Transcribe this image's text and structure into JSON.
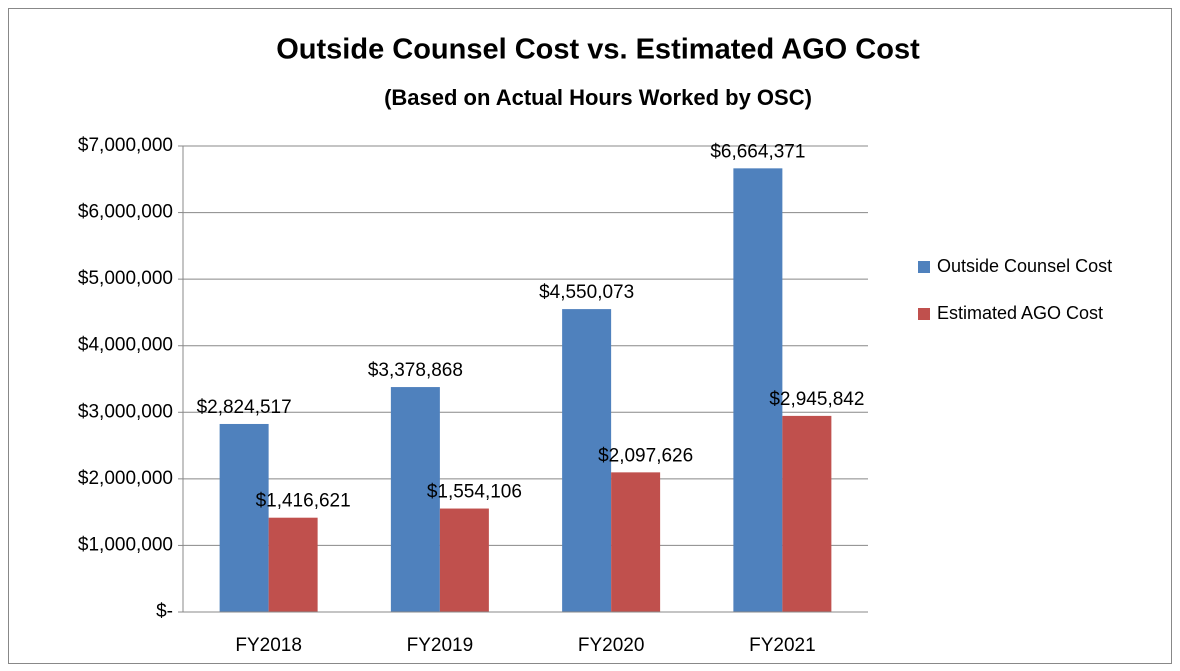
{
  "chart_data": {
    "type": "bar",
    "title": "Outside Counsel Cost vs. Estimated AGO Cost",
    "subtitle": "(Based on Actual Hours Worked by OSC)",
    "categories": [
      "FY2018",
      "FY2019",
      "FY2020",
      "FY2021"
    ],
    "series": [
      {
        "name": "Outside Counsel Cost",
        "color": "#4f81bd",
        "values": [
          2824517,
          3378868,
          4550073,
          6664371
        ],
        "value_labels": [
          "$2,824,517",
          "$3,378,868",
          "$4,550,073",
          "$6,664,371"
        ]
      },
      {
        "name": "Estimated AGO Cost",
        "color": "#c0504d",
        "values": [
          1416621,
          1554106,
          2097626,
          2945842
        ],
        "value_labels": [
          "$1,416,621",
          "$1,554,106",
          "$2,097,626",
          "$2,945,842"
        ]
      }
    ],
    "ylim": [
      0,
      7000000
    ],
    "yticks": [
      {
        "value": 0,
        "label": "$-"
      },
      {
        "value": 1000000,
        "label": "$1,000,000"
      },
      {
        "value": 2000000,
        "label": "$2,000,000"
      },
      {
        "value": 3000000,
        "label": "$3,000,000"
      },
      {
        "value": 4000000,
        "label": "$4,000,000"
      },
      {
        "value": 5000000,
        "label": "$5,000,000"
      },
      {
        "value": 6000000,
        "label": "$6,000,000"
      },
      {
        "value": 7000000,
        "label": "$7,000,000"
      }
    ],
    "grid": true,
    "legend": "right"
  }
}
